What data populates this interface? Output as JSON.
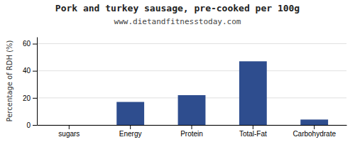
{
  "chart_data": {
    "type": "bar",
    "title": "Pork and turkey sausage, pre-cooked per 100g",
    "subtitle": "www.dietandfitnesstoday.com",
    "categories": [
      "sugars",
      "Energy",
      "Protein",
      "Total-Fat",
      "Carbohydrate"
    ],
    "values": [
      0,
      17,
      22,
      47,
      4
    ],
    "color": "#2e4d8e",
    "ylabel": "Percentage of RDH (%)",
    "ylim": [
      0,
      65
    ],
    "yticks": [
      0,
      20,
      40,
      60
    ],
    "grid": true
  }
}
